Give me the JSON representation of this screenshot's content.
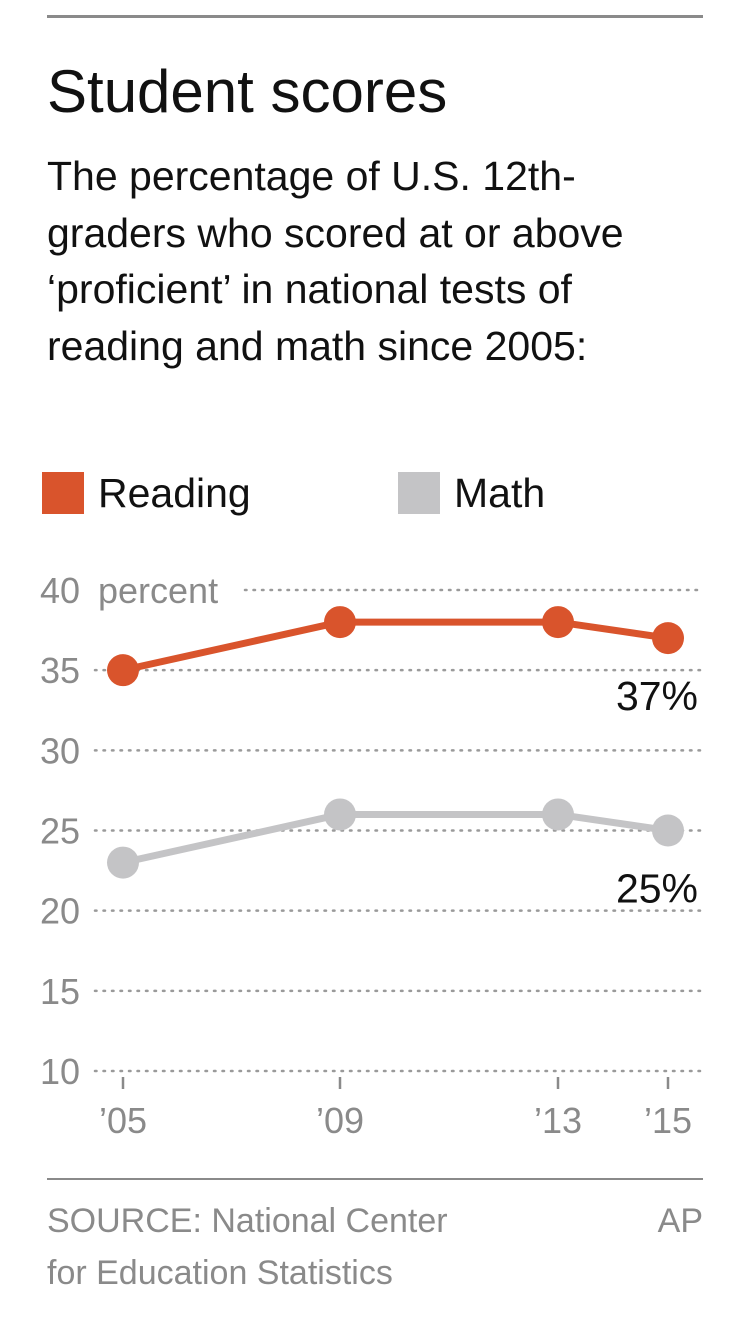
{
  "header": {
    "title": "Student scores",
    "subtitle": "The percentage of U.S. 12th-graders who scored at or above ‘proficient’ in national tests of reading and math since 2005:"
  },
  "legend": [
    {
      "label": "Reading",
      "color": "#d9542c"
    },
    {
      "label": "Math",
      "color": "#c4c4c6"
    }
  ],
  "chart_data": {
    "type": "line",
    "x": [
      2005,
      2009,
      2013,
      2015
    ],
    "x_tick_labels": [
      "’05",
      "’09",
      "’13",
      "’15"
    ],
    "ylim": [
      10,
      40
    ],
    "y_ticks": [
      10,
      15,
      20,
      25,
      30,
      35,
      40
    ],
    "y_unit_label": "percent",
    "grid": true,
    "series": [
      {
        "name": "Reading",
        "color": "#d9542c",
        "values": [
          35,
          38,
          38,
          37
        ],
        "end_label": "37%"
      },
      {
        "name": "Math",
        "color": "#c4c4c6",
        "values": [
          23,
          26,
          26,
          25
        ],
        "end_label": "25%"
      }
    ]
  },
  "footer": {
    "source": "SOURCE: National Center\nfor Education Statistics",
    "credit": "AP"
  }
}
